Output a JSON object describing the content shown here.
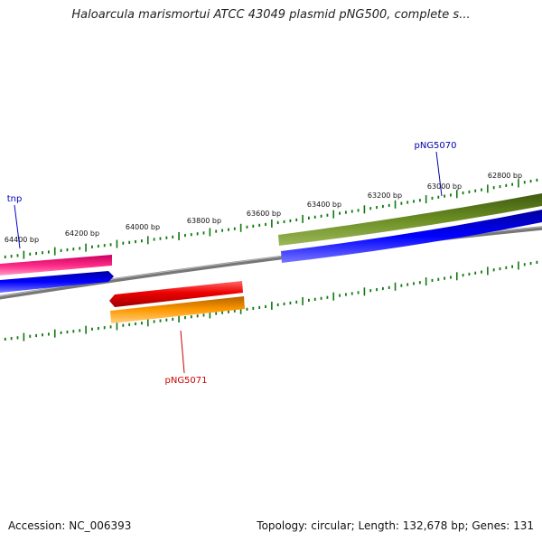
{
  "title": "Haloarcula marismortui ATCC 43049 plasmid pNG500, complete s...",
  "footer": {
    "accession": "Accession: NC_006393",
    "summary": "Topology: circular; Length: 132,678 bp; Genes: 131"
  },
  "ruler": {
    "tick_labels": [
      "64400 bp",
      "64200 bp",
      "64000 bp",
      "63800 bp",
      "63600 bp",
      "63400 bp",
      "63200 bp",
      "63000 bp",
      "62800 bp"
    ]
  },
  "genes": {
    "tnp": {
      "label": "tnp",
      "color": "#0000cc"
    },
    "pNG5070": {
      "label": "pNG5070",
      "color": "#0000aa"
    },
    "pNG5071": {
      "label": "pNG5071",
      "color": "#cc0000"
    }
  },
  "colors": {
    "backbone": "#808080",
    "ticks": "#117711",
    "tnp_feature": "#ff2d8a",
    "cds_forward": "#0000ff",
    "pNG5070_feature": "#6b8e23",
    "pNG5071_feature": "#ee0000",
    "cds_reverse": "#ff9900"
  }
}
